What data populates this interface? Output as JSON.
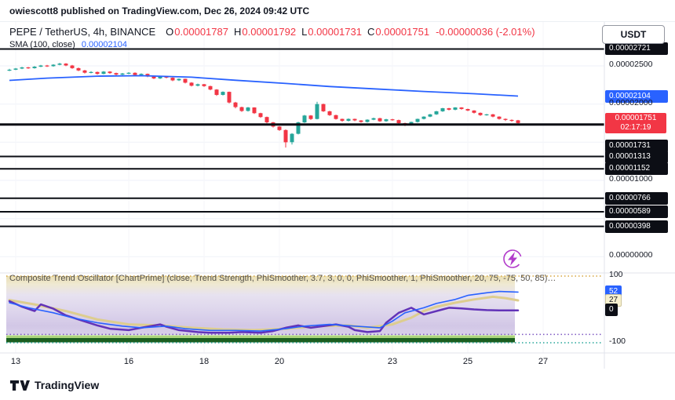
{
  "publish_bar": {
    "text": "owiescott8 published on TradingView.com, Dec 26, 2024 09:42 UTC"
  },
  "header": {
    "symbol": "PEPE / TetherUS, 4h, BINANCE",
    "o_label": "O",
    "open": "0.00001787",
    "h_label": "H",
    "high": "0.00001792",
    "l_label": "L",
    "low": "0.00001731",
    "c_label": "C",
    "close": "0.00001751",
    "change": "-0.00000036 (-2.01%)",
    "currency": "USDT",
    "sma_label": "SMA (100, close)",
    "sma_value": "0.00002104"
  },
  "colors": {
    "up": "#26a69a",
    "down": "#f23645",
    "sma": "#2962ff",
    "level": "#0b0e14",
    "osc_purple": "#6233b8",
    "osc_blue": "#2962ff",
    "osc_cream": "#ddcd8e",
    "grid": "#eff2f8",
    "separator": "#e0e3eb",
    "dotted_upper": "#d7a53f",
    "dotted_lower": "#7e57c2",
    "dotted_bottom": "#26a69a",
    "green_bar_dark": "#1b5e20",
    "green_bar_light": "#9ccc65",
    "chartprime_icon": "#b23ccb"
  },
  "price_axis": {
    "labels": [
      {
        "text": "0.00002721",
        "price": 2721,
        "style": "black"
      },
      {
        "text": "0.00002500",
        "price": 2500,
        "style": "plain"
      },
      {
        "text": "0.00002104",
        "price": 2104,
        "style": "blue"
      },
      {
        "text": "0.00002000",
        "price": 2000,
        "style": "plain"
      },
      {
        "text": "0.00001751",
        "price": 1751,
        "style": "red",
        "countdown": "02:17:19"
      },
      {
        "text": "0.00001731",
        "price": 1731,
        "style": "black",
        "y_override": 186
      },
      {
        "text": "0.00001313",
        "price": 1313,
        "style": "black"
      },
      {
        "text": "0.00001152",
        "price": 1152,
        "style": "black"
      },
      {
        "text": "0.00001000",
        "price": 1000,
        "style": "plain"
      },
      {
        "text": "0.00000766",
        "price": 766,
        "style": "black"
      },
      {
        "text": "0.00000589",
        "price": 589,
        "style": "black"
      },
      {
        "text": "0.00000398",
        "price": 398,
        "style": "black"
      },
      {
        "text": "0.00000000",
        "price": 0,
        "style": "plain"
      }
    ]
  },
  "osc_axis": {
    "labels": [
      {
        "text": "100",
        "value": 100,
        "style": "plain"
      },
      {
        "text": "52",
        "value": 52,
        "style": "blue"
      },
      {
        "text": "27",
        "value": 27,
        "style": "cream"
      },
      {
        "text": "0",
        "value": 0,
        "style": "black"
      },
      {
        "text": "-100",
        "value": -100,
        "style": "plain"
      }
    ]
  },
  "x_axis": {
    "labels": [
      {
        "text": "13",
        "i": 1
      },
      {
        "text": "16",
        "i": 19
      },
      {
        "text": "18",
        "i": 31
      },
      {
        "text": "20",
        "i": 43
      },
      {
        "text": "23",
        "i": 61
      },
      {
        "text": "25",
        "i": 73
      },
      {
        "text": "27",
        "i": 85
      }
    ]
  },
  "chart_data": {
    "type": "candlestick",
    "symbol": "PEPE/USDT",
    "timeframe": "4h",
    "price_unit": "1e-8 USDT",
    "gridlines": [
      2500,
      2000,
      1500,
      1000,
      500,
      0
    ],
    "levels": [
      2721,
      1731,
      1313,
      1152,
      766,
      589,
      398
    ],
    "candles": [
      [
        2440,
        2462,
        2432,
        2450
      ],
      [
        2450,
        2472,
        2444,
        2465
      ],
      [
        2465,
        2488,
        2458,
        2480
      ],
      [
        2480,
        2486,
        2462,
        2470
      ],
      [
        2470,
        2498,
        2464,
        2490
      ],
      [
        2490,
        2512,
        2484,
        2505
      ],
      [
        2505,
        2512,
        2486,
        2495
      ],
      [
        2495,
        2522,
        2490,
        2515
      ],
      [
        2515,
        2540,
        2508,
        2530
      ],
      [
        2530,
        2536,
        2496,
        2505
      ],
      [
        2505,
        2512,
        2462,
        2470
      ],
      [
        2470,
        2478,
        2430,
        2440
      ],
      [
        2440,
        2448,
        2400,
        2410
      ],
      [
        2410,
        2430,
        2402,
        2420
      ],
      [
        2420,
        2426,
        2386,
        2395
      ],
      [
        2395,
        2432,
        2390,
        2425
      ],
      [
        2425,
        2430,
        2396,
        2405
      ],
      [
        2405,
        2412,
        2376,
        2385
      ],
      [
        2385,
        2408,
        2378,
        2400
      ],
      [
        2400,
        2418,
        2392,
        2410
      ],
      [
        2410,
        2415,
        2372,
        2380
      ],
      [
        2380,
        2402,
        2374,
        2395
      ],
      [
        2395,
        2400,
        2352,
        2360
      ],
      [
        2360,
        2366,
        2326,
        2335
      ],
      [
        2335,
        2372,
        2328,
        2365
      ],
      [
        2365,
        2370,
        2336,
        2345
      ],
      [
        2345,
        2350,
        2300,
        2310
      ],
      [
        2310,
        2336,
        2302,
        2330
      ],
      [
        2330,
        2334,
        2270,
        2280
      ],
      [
        2280,
        2286,
        2230,
        2240
      ],
      [
        2240,
        2268,
        2232,
        2260
      ],
      [
        2260,
        2264,
        2226,
        2235
      ],
      [
        2235,
        2240,
        2180,
        2190
      ],
      [
        2190,
        2196,
        2108,
        2120
      ],
      [
        2120,
        2166,
        2112,
        2160
      ],
      [
        2160,
        2164,
        2008,
        2020
      ],
      [
        2020,
        2028,
        1944,
        1960
      ],
      [
        1960,
        1966,
        1898,
        1910
      ],
      [
        1910,
        1962,
        1902,
        1955
      ],
      [
        1955,
        1958,
        1870,
        1880
      ],
      [
        1880,
        1886,
        1820,
        1830
      ],
      [
        1830,
        1836,
        1748,
        1760
      ],
      [
        1760,
        1766,
        1692,
        1705
      ],
      [
        1705,
        1712,
        1648,
        1660
      ],
      [
        1660,
        1668,
        1430,
        1500
      ],
      [
        1500,
        1618,
        1470,
        1610
      ],
      [
        1610,
        1768,
        1602,
        1760
      ],
      [
        1760,
        1858,
        1752,
        1850
      ],
      [
        1850,
        1856,
        1792,
        1805
      ],
      [
        1805,
        2030,
        1798,
        2000
      ],
      [
        2000,
        2006,
        1896,
        1905
      ],
      [
        1905,
        1912,
        1846,
        1855
      ],
      [
        1855,
        1860,
        1796,
        1805
      ],
      [
        1805,
        1810,
        1768,
        1780
      ],
      [
        1780,
        1812,
        1772,
        1805
      ],
      [
        1805,
        1810,
        1776,
        1785
      ],
      [
        1785,
        1790,
        1756,
        1765
      ],
      [
        1765,
        1800,
        1758,
        1795
      ],
      [
        1795,
        1822,
        1788,
        1815
      ],
      [
        1815,
        1820,
        1766,
        1775
      ],
      [
        1775,
        1806,
        1768,
        1800
      ],
      [
        1800,
        1806,
        1782,
        1790
      ],
      [
        1790,
        1796,
        1742,
        1750
      ],
      [
        1750,
        1756,
        1712,
        1725
      ],
      [
        1725,
        1770,
        1718,
        1765
      ],
      [
        1765,
        1810,
        1758,
        1805
      ],
      [
        1805,
        1840,
        1798,
        1835
      ],
      [
        1835,
        1870,
        1828,
        1865
      ],
      [
        1865,
        1910,
        1858,
        1905
      ],
      [
        1905,
        1950,
        1898,
        1945
      ],
      [
        1945,
        1950,
        1916,
        1925
      ],
      [
        1925,
        1960,
        1918,
        1955
      ],
      [
        1955,
        1960,
        1926,
        1935
      ],
      [
        1935,
        1940,
        1906,
        1915
      ],
      [
        1915,
        1920,
        1876,
        1885
      ],
      [
        1885,
        1890,
        1846,
        1855
      ],
      [
        1855,
        1870,
        1848,
        1865
      ],
      [
        1865,
        1870,
        1826,
        1835
      ],
      [
        1835,
        1840,
        1796,
        1805
      ],
      [
        1805,
        1812,
        1778,
        1792
      ],
      [
        1792,
        1798,
        1770,
        1787
      ],
      [
        1787,
        1792,
        1731,
        1751
      ]
    ],
    "sma": {
      "period": 100,
      "points": [
        [
          0,
          2310
        ],
        [
          6,
          2340
        ],
        [
          14,
          2365
        ],
        [
          21,
          2372
        ],
        [
          29,
          2352
        ],
        [
          36,
          2312
        ],
        [
          44,
          2270
        ],
        [
          51,
          2230
        ],
        [
          59,
          2195
        ],
        [
          66,
          2165
        ],
        [
          74,
          2135
        ],
        [
          81,
          2104
        ]
      ]
    },
    "oscillator": {
      "title": "Composite Trend Oscillator [ChartPrime] (close, Trend Strength, PhiSmoother, 3.7, 3, 0, 0, PhiSmoother, 1, PhiSmoother, 20, 75, -75, 50, 85)…",
      "range": [
        -100,
        100
      ],
      "thresholds": {
        "upper": 75,
        "lower": -75
      },
      "current": {
        "blue": 52,
        "cream": 27,
        "black": 0
      },
      "band_stops": [
        [
          "0",
          "#eadfb4"
        ],
        [
          "0.14",
          "#efe9d2"
        ],
        [
          "0.32",
          "#e7e2f0"
        ],
        [
          "0.6",
          "#ddd5ec"
        ],
        [
          "0.85",
          "#d2c7e6"
        ],
        [
          "1",
          "#d9d0ea"
        ]
      ],
      "series": [
        {
          "name": "signal-slow",
          "color_role": "cream",
          "width": 3,
          "points": [
            [
              0,
              28
            ],
            [
              4,
              15
            ],
            [
              9,
              -5
            ],
            [
              14,
              -30
            ],
            [
              19,
              -45
            ],
            [
              24,
              -48
            ],
            [
              29,
              -55
            ],
            [
              34,
              -60
            ],
            [
              39,
              -62
            ],
            [
              44,
              -58
            ],
            [
              49,
              -50
            ],
            [
              54,
              -48
            ],
            [
              57,
              -55
            ],
            [
              61,
              -45
            ],
            [
              64,
              -25
            ],
            [
              66,
              -5
            ],
            [
              68,
              8
            ],
            [
              71,
              20
            ],
            [
              74,
              30
            ],
            [
              77,
              38
            ],
            [
              79,
              34
            ],
            [
              81,
              27
            ]
          ]
        },
        {
          "name": "oscillator",
          "color_role": "purple",
          "width": 2.5,
          "points": [
            [
              0,
              25
            ],
            [
              2,
              8
            ],
            [
              4,
              -5
            ],
            [
              5,
              15
            ],
            [
              7,
              2
            ],
            [
              9,
              -18
            ],
            [
              11,
              -30
            ],
            [
              14,
              -48
            ],
            [
              16,
              -58
            ],
            [
              19,
              -62
            ],
            [
              21,
              -55
            ],
            [
              24,
              -45
            ],
            [
              25,
              -52
            ],
            [
              27,
              -62
            ],
            [
              30,
              -68
            ],
            [
              32,
              -70
            ],
            [
              35,
              -70
            ],
            [
              37,
              -68
            ],
            [
              40,
              -70
            ],
            [
              42,
              -65
            ],
            [
              44,
              -55
            ],
            [
              46,
              -48
            ],
            [
              48,
              -55
            ],
            [
              50,
              -50
            ],
            [
              52,
              -45
            ],
            [
              54,
              -52
            ],
            [
              55,
              -62
            ],
            [
              57,
              -68
            ],
            [
              59,
              -65
            ],
            [
              60,
              -40
            ],
            [
              62,
              -10
            ],
            [
              64,
              5
            ],
            [
              65,
              -5
            ],
            [
              66,
              -15
            ],
            [
              67,
              -10
            ],
            [
              69,
              0
            ],
            [
              70,
              5
            ],
            [
              72,
              3
            ],
            [
              74,
              0
            ],
            [
              76,
              -2
            ],
            [
              78,
              -3
            ],
            [
              81,
              -3
            ]
          ]
        },
        {
          "name": "signal-fast",
          "color_role": "blue",
          "width": 1.6,
          "points": [
            [
              0,
              20
            ],
            [
              3,
              5
            ],
            [
              7,
              -10
            ],
            [
              10,
              -25
            ],
            [
              14,
              -40
            ],
            [
              18,
              -50
            ],
            [
              21,
              -55
            ],
            [
              25,
              -50
            ],
            [
              28,
              -58
            ],
            [
              32,
              -63
            ],
            [
              36,
              -63
            ],
            [
              40,
              -65
            ],
            [
              44,
              -58
            ],
            [
              47,
              -50
            ],
            [
              51,
              -45
            ],
            [
              55,
              -50
            ],
            [
              59,
              -55
            ],
            [
              61,
              -35
            ],
            [
              63,
              -10
            ],
            [
              66,
              5
            ],
            [
              68,
              18
            ],
            [
              71,
              30
            ],
            [
              73,
              42
            ],
            [
              76,
              50
            ],
            [
              78,
              54
            ],
            [
              81,
              52
            ]
          ]
        }
      ]
    }
  },
  "footer": {
    "brand": "TradingView"
  }
}
